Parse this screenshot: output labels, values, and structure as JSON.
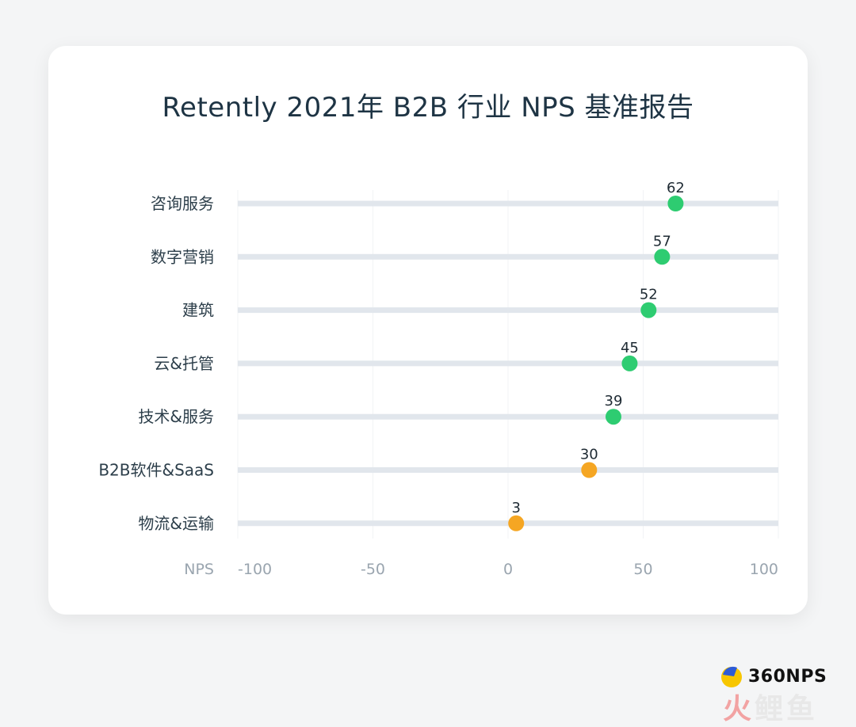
{
  "chart_data": {
    "type": "dot",
    "title": "Retently 2021年 B2B 行业 NPS 基准报告",
    "xlabel": "NPS",
    "xlim": [
      -100,
      100
    ],
    "xticks": [
      -100,
      -50,
      0,
      50,
      100
    ],
    "tick_labels": [
      "-100",
      "-50",
      "0",
      "50",
      "100"
    ],
    "categories": [
      "咨询服务",
      "数字营销",
      "建筑",
      "云&托管",
      "技术&服务",
      "B2B软件&SaaS",
      "物流&运输"
    ],
    "values": [
      62,
      57,
      52,
      45,
      39,
      30,
      3
    ],
    "point_colors": [
      "#2ecc71",
      "#2ecc71",
      "#2ecc71",
      "#2ecc71",
      "#2ecc71",
      "#f5a623",
      "#f5a623"
    ],
    "track_color": "#e1e6ec",
    "grid": true
  },
  "brand": {
    "name": "360NPS",
    "watermark_chars": [
      "火",
      "鲤",
      "鱼"
    ]
  }
}
